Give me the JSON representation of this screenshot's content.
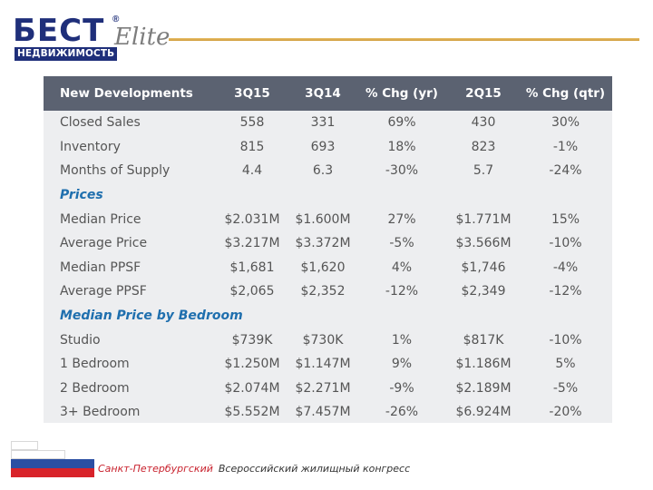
{
  "brand": {
    "logo_main": "БЕСТ",
    "logo_reg": "®",
    "logo_script": "Elite",
    "logo_sub": "НЕДВИЖИМОСТЬ",
    "accent_color": "#1f2f7a",
    "rule_color": "#d9a74a"
  },
  "table": {
    "header": [
      "New Developments",
      "3Q15",
      "3Q14",
      "% Chg (yr)",
      "2Q15",
      "% Chg (qtr)"
    ],
    "rows": [
      {
        "type": "data",
        "cells": [
          "Closed Sales",
          "558",
          "331",
          "69%",
          "430",
          "30%"
        ]
      },
      {
        "type": "data",
        "cells": [
          "Inventory",
          "815",
          "693",
          "18%",
          "823",
          "-1%"
        ]
      },
      {
        "type": "data",
        "cells": [
          "Months of Supply",
          "4.4",
          "6.3",
          "-30%",
          "5.7",
          "-24%"
        ]
      },
      {
        "type": "section",
        "cells": [
          "Prices"
        ]
      },
      {
        "type": "data",
        "cells": [
          "Median Price",
          "$2.031M",
          "$1.600M",
          "27%",
          "$1.771M",
          "15%"
        ]
      },
      {
        "type": "data",
        "cells": [
          "Average Price",
          "$3.217M",
          "$3.372M",
          "-5%",
          "$3.566M",
          "-10%"
        ]
      },
      {
        "type": "data",
        "cells": [
          "Median PPSF",
          "$1,681",
          "$1,620",
          "4%",
          "$1,746",
          "-4%"
        ]
      },
      {
        "type": "data",
        "cells": [
          "Average PPSF",
          "$2,065",
          "$2,352",
          "-12%",
          "$2,349",
          "-12%"
        ]
      },
      {
        "type": "section",
        "cells": [
          "Median Price by Bedroom"
        ]
      },
      {
        "type": "data",
        "cells": [
          "Studio",
          "$739K",
          "$730K",
          "1%",
          "$817K",
          "-10%"
        ]
      },
      {
        "type": "data",
        "cells": [
          "1 Bedroom",
          "$1.250M",
          "$1.147M",
          "9%",
          "$1.186M",
          "5%"
        ]
      },
      {
        "type": "data",
        "cells": [
          "2 Bedroom",
          "$2.074M",
          "$2.271M",
          "-9%",
          "$2.189M",
          "-5%"
        ]
      },
      {
        "type": "data",
        "cells": [
          "3+ Bedroom",
          "$5.552M",
          "$7.457M",
          "-26%",
          "$6.924M",
          "-20%"
        ]
      }
    ],
    "header_color": "#5b6271",
    "section_color": "#1f6fae",
    "background_color": "#edeef0"
  },
  "footer": {
    "city": "Санкт-Петербургский",
    "event": "Всероссийский жилищный конгресс",
    "flag_colors": [
      "#ffffff",
      "#2a4fa3",
      "#d8232a"
    ]
  }
}
